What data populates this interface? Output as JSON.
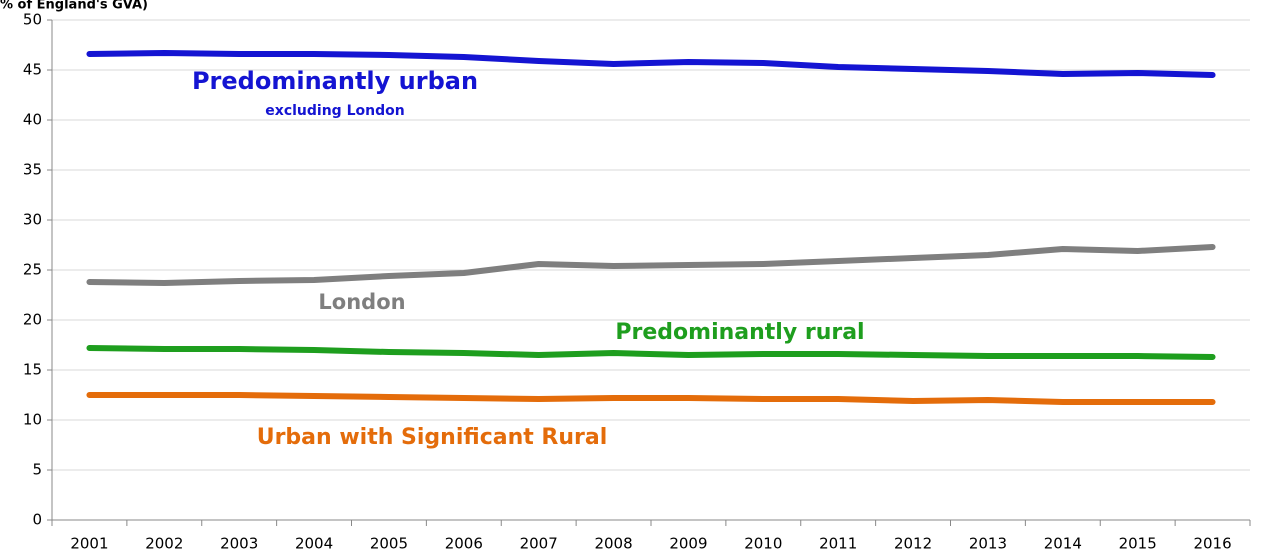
{
  "chart_data": {
    "type": "line",
    "title": "% of England's GVA)",
    "categories": [
      "2001",
      "2002",
      "2003",
      "2004",
      "2005",
      "2006",
      "2007",
      "2008",
      "2009",
      "2010",
      "2011",
      "2012",
      "2013",
      "2014",
      "2015",
      "2016"
    ],
    "series": [
      {
        "name": "Predominantly urban",
        "color": "#1414d2",
        "values": [
          46.6,
          46.7,
          46.6,
          46.6,
          46.5,
          46.3,
          45.9,
          45.6,
          45.8,
          45.7,
          45.3,
          45.1,
          44.9,
          44.6,
          44.7,
          44.5
        ]
      },
      {
        "name": "London",
        "color": "#7f7f7f",
        "values": [
          23.8,
          23.7,
          23.9,
          24.0,
          24.4,
          24.7,
          25.6,
          25.4,
          25.5,
          25.6,
          25.9,
          26.2,
          26.5,
          27.1,
          26.9,
          27.3
        ]
      },
      {
        "name": "Predominantly rural",
        "color": "#1e9e1e",
        "values": [
          17.2,
          17.1,
          17.1,
          17.0,
          16.8,
          16.7,
          16.5,
          16.7,
          16.5,
          16.6,
          16.6,
          16.5,
          16.4,
          16.4,
          16.4,
          16.3
        ]
      },
      {
        "name": "Urban with Significant Rural",
        "color": "#e46c0a",
        "values": [
          12.5,
          12.5,
          12.5,
          12.4,
          12.3,
          12.2,
          12.1,
          12.2,
          12.2,
          12.1,
          12.1,
          11.9,
          12.0,
          11.8,
          11.8,
          11.8
        ]
      }
    ],
    "annotations": [
      "excluding London"
    ],
    "ylim": [
      0,
      50
    ],
    "yticks": [
      0,
      5,
      10,
      15,
      20,
      25,
      30,
      35,
      40,
      45,
      50
    ],
    "grid": true
  }
}
